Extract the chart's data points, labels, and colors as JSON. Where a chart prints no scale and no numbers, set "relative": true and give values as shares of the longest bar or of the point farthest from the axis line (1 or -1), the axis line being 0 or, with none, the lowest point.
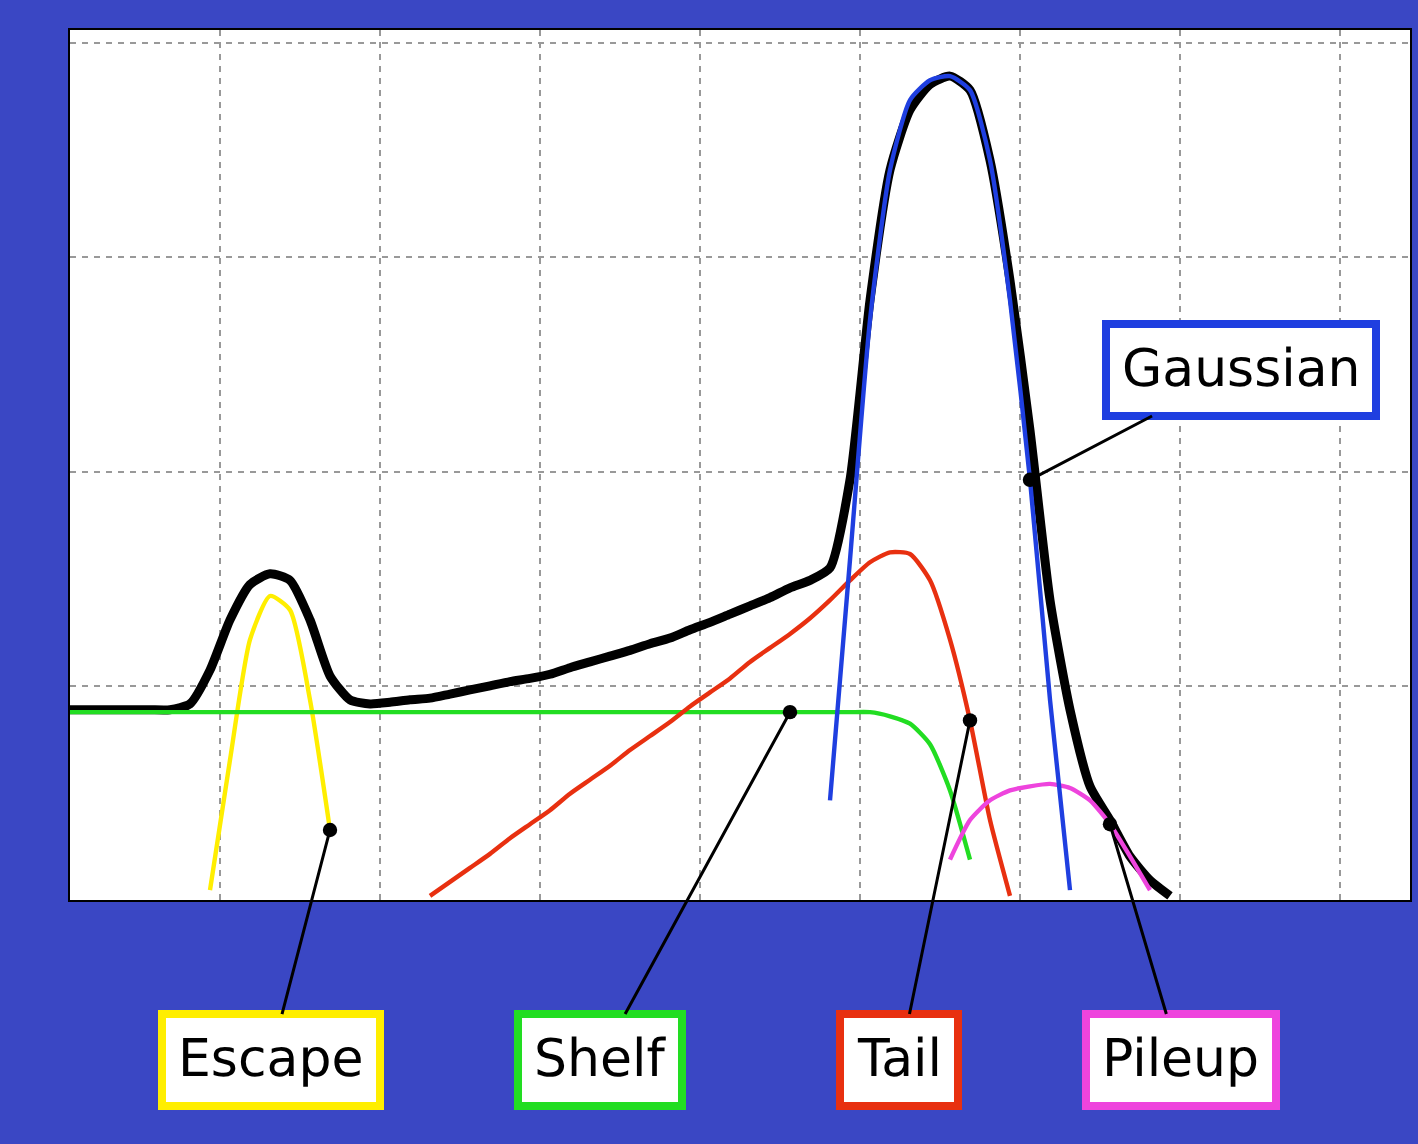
{
  "chart_data": {
    "type": "line",
    "relative": true,
    "legend": false,
    "grid": true,
    "tick_labels": false,
    "marker": "none",
    "line_style": "solid",
    "categories": [
      null,
      null,
      null,
      null,
      null,
      null,
      null,
      null,
      null,
      null,
      null,
      null,
      null,
      null,
      null,
      null,
      null,
      null,
      null,
      null,
      null,
      null,
      null,
      null,
      null,
      null,
      null,
      null,
      null,
      null,
      null,
      null,
      null,
      null,
      null,
      null,
      null,
      null,
      null,
      null,
      null,
      null,
      null,
      null,
      null,
      null,
      null,
      null,
      null,
      null,
      null,
      null,
      null,
      null,
      null,
      null,
      null,
      null,
      null,
      null,
      null,
      null,
      null,
      null,
      null,
      null,
      null,
      null
    ],
    "series": [
      {
        "color": "#000000",
        "values": [
          0.231,
          0.231,
          0.231,
          0.231,
          0.231,
          0.231,
          0.238,
          0.279,
          0.34,
          0.383,
          0.396,
          0.388,
          0.34,
          0.272,
          0.243,
          0.238,
          0.24,
          0.243,
          0.245,
          0.25,
          0.255,
          0.26,
          0.265,
          0.269,
          0.274,
          0.282,
          0.289,
          0.296,
          0.303,
          0.311,
          0.318,
          0.328,
          0.337,
          0.347,
          0.357,
          0.367,
          0.379,
          0.388,
          0.403,
          0.51,
          0.728,
          0.886,
          0.959,
          0.99,
          1,
          0.983,
          0.898,
          0.752,
          0.57,
          0.364,
          0.231,
          0.138,
          0.097,
          0.053,
          0.024,
          0.005,
          null,
          null,
          null,
          null,
          null,
          null,
          null,
          null,
          null,
          null,
          null,
          null
        ]
      },
      {
        "name": "Escape",
        "color": "#ffee00",
        "values": [
          null,
          null,
          null,
          null,
          null,
          null,
          null,
          0.012,
          0.17,
          0.316,
          0.369,
          0.352,
          0.243,
          0.085,
          null,
          null,
          null,
          null,
          null,
          null,
          null,
          null,
          null,
          null,
          null,
          null,
          null,
          null,
          null,
          null,
          null,
          null,
          null,
          null,
          null,
          null,
          null,
          null,
          null,
          null,
          null,
          null,
          null,
          null,
          null,
          null,
          null,
          null,
          null,
          null,
          null,
          null,
          null,
          null,
          null,
          null,
          null,
          null,
          null,
          null,
          null,
          null,
          null,
          null,
          null,
          null,
          null,
          null
        ]
      },
      {
        "name": "Shelf",
        "color": "#22dd22",
        "values": [
          0.228,
          0.228,
          0.228,
          0.228,
          0.228,
          0.228,
          0.228,
          0.228,
          0.228,
          0.228,
          0.228,
          0.228,
          0.228,
          0.228,
          0.228,
          0.228,
          0.228,
          0.228,
          0.228,
          0.228,
          0.228,
          0.228,
          0.228,
          0.228,
          0.228,
          0.228,
          0.228,
          0.228,
          0.228,
          0.228,
          0.228,
          0.228,
          0.228,
          0.228,
          0.228,
          0.228,
          0.228,
          0.228,
          0.228,
          0.228,
          0.228,
          0.223,
          0.214,
          0.189,
          0.133,
          0.049,
          null,
          null,
          null,
          null,
          null,
          null,
          null,
          null,
          null,
          null,
          null,
          null,
          null,
          null,
          null,
          null,
          null,
          null,
          null,
          null,
          null,
          null
        ]
      },
      {
        "name": "Tail",
        "color": "#e83010",
        "values": [
          null,
          null,
          null,
          null,
          null,
          null,
          null,
          null,
          null,
          null,
          null,
          null,
          null,
          null,
          null,
          null,
          null,
          null,
          0.005,
          0.022,
          0.039,
          0.056,
          0.075,
          0.092,
          0.109,
          0.129,
          0.146,
          0.163,
          0.182,
          0.199,
          0.216,
          0.235,
          0.252,
          0.269,
          0.289,
          0.306,
          0.323,
          0.342,
          0.364,
          0.388,
          0.41,
          0.422,
          0.42,
          0.388,
          0.316,
          0.218,
          0.097,
          0.005,
          null,
          null,
          null,
          null,
          null,
          null,
          null,
          null,
          null,
          null,
          null,
          null,
          null,
          null,
          null,
          null,
          null,
          null,
          null,
          null
        ]
      },
      {
        "name": "Pileup",
        "color": "#ee44dd",
        "values": [
          null,
          null,
          null,
          null,
          null,
          null,
          null,
          null,
          null,
          null,
          null,
          null,
          null,
          null,
          null,
          null,
          null,
          null,
          null,
          null,
          null,
          null,
          null,
          null,
          null,
          null,
          null,
          null,
          null,
          null,
          null,
          null,
          null,
          null,
          null,
          null,
          null,
          null,
          null,
          null,
          null,
          null,
          null,
          null,
          0.049,
          0.097,
          0.121,
          0.133,
          0.138,
          0.141,
          0.136,
          0.121,
          0.092,
          0.053,
          0.012,
          null,
          null,
          null,
          null,
          null,
          null,
          null,
          null,
          null,
          null,
          null,
          null,
          null
        ]
      },
      {
        "name": "Gaussian",
        "color": "#1f3fe0",
        "values": [
          null,
          null,
          null,
          null,
          null,
          null,
          null,
          null,
          null,
          null,
          null,
          null,
          null,
          null,
          null,
          null,
          null,
          null,
          null,
          null,
          null,
          null,
          null,
          null,
          null,
          null,
          null,
          null,
          null,
          null,
          null,
          null,
          null,
          null,
          null,
          null,
          null,
          null,
          0.121,
          0.413,
          0.704,
          0.886,
          0.971,
          0.995,
          1,
          0.983,
          0.898,
          0.728,
          0.51,
          0.243,
          0.012,
          null,
          null,
          null,
          null,
          null,
          null,
          null,
          null,
          null,
          null,
          null,
          null,
          null,
          null,
          null,
          null,
          null
        ]
      }
    ]
  }
}
